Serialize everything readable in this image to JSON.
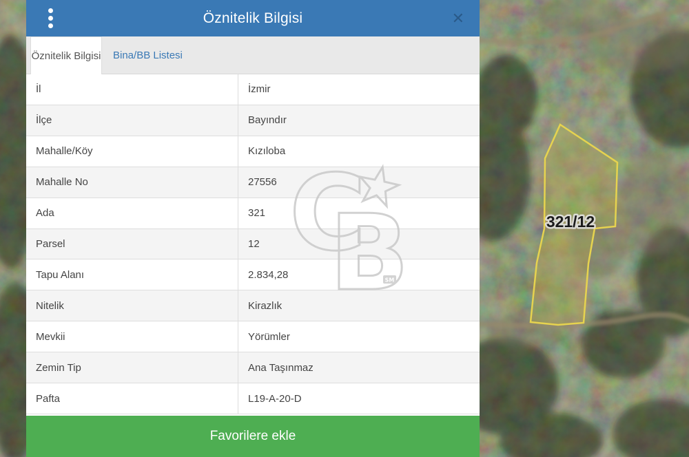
{
  "header": {
    "title": "Öznitelik Bilgisi",
    "close_icon": "✕",
    "kebab_menu_icon": "vertical-three-dots"
  },
  "tabs": [
    {
      "label": "Öznitelik Bilgisi",
      "active": true
    },
    {
      "label": "Bina/BB Listesi",
      "active": false
    }
  ],
  "table": {
    "rows": [
      {
        "label": "İl",
        "value": "İzmir"
      },
      {
        "label": "İlçe",
        "value": "Bayındır"
      },
      {
        "label": "Mahalle/Köy",
        "value": "Kızıloba"
      },
      {
        "label": "Mahalle No",
        "value": "27556"
      },
      {
        "label": "Ada",
        "value": "321"
      },
      {
        "label": "Parsel",
        "value": "12"
      },
      {
        "label": "Tapu Alanı",
        "value": "2.834,28"
      },
      {
        "label": "Nitelik",
        "value": "Kirazlık"
      },
      {
        "label": "Mevkii",
        "value": "Yörümler"
      },
      {
        "label": "Zemin Tip",
        "value": "Ana Taşınmaz"
      },
      {
        "label": "Pafta",
        "value": "L19-A-20-D"
      }
    ]
  },
  "footer": {
    "favorite_button_label": "Favorilere ekle"
  },
  "map": {
    "parcel_label": "321/12",
    "parcel_outline_color": "#e6d34f"
  },
  "watermark": {
    "letter_c": "C",
    "letter_b": "B",
    "sm_badge": "SM"
  },
  "colors": {
    "header_blue": "#3a79b5",
    "link_blue": "#3a79b5",
    "button_green": "#4eae52",
    "row_alt_gray": "#f4f4f4",
    "border_gray": "#dddddd"
  }
}
